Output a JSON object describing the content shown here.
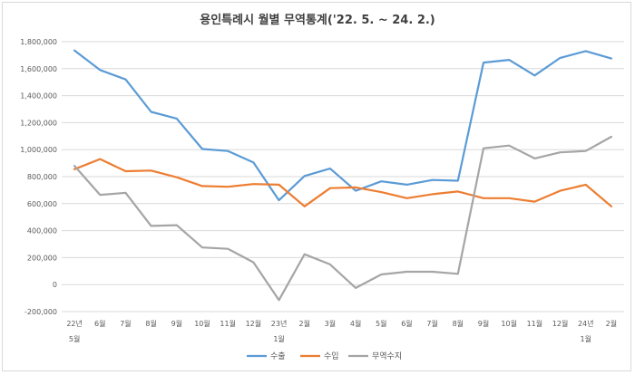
{
  "chart_data": {
    "type": "line",
    "title": "용인특례시 월별 무역통계('22. 5. ~ 24. 2.)",
    "categories": [
      "22년 5월",
      "6월",
      "7월",
      "8월",
      "9월",
      "10월",
      "11월",
      "12월",
      "23년 1월",
      "2월",
      "3월",
      "4월",
      "5월",
      "6월",
      "7월",
      "8월",
      "9월",
      "10월",
      "11월",
      "12월",
      "24년 1월",
      "2월"
    ],
    "x_labels_top": [
      "22년",
      "6월",
      "7월",
      "8월",
      "9월",
      "10월",
      "11월",
      "12월",
      "23년",
      "2월",
      "3월",
      "4월",
      "5월",
      "6월",
      "7월",
      "8월",
      "9월",
      "10월",
      "11월",
      "12월",
      "24년",
      "2월"
    ],
    "x_labels_bottom": [
      "5월",
      "",
      "",
      "",
      "",
      "",
      "",
      "",
      "1월",
      "",
      "",
      "",
      "",
      "",
      "",
      "",
      "",
      "",
      "",
      "",
      "1월",
      ""
    ],
    "ylim": [
      -200000,
      1800000
    ],
    "yticks": [
      "1,800,000",
      "1,600,000",
      "1,400,000",
      "1,200,000",
      "1,000,000",
      "800,000",
      "600,000",
      "400,000",
      "200,000",
      "0",
      "-200,000"
    ],
    "ytick_values": [
      1800000,
      1600000,
      1400000,
      1200000,
      1000000,
      800000,
      600000,
      400000,
      200000,
      0,
      -200000
    ],
    "grid": true,
    "legend_position": "bottom",
    "series": [
      {
        "name": "수출",
        "color": "#5b9bd5",
        "values": [
          1735000,
          1590000,
          1520000,
          1280000,
          1230000,
          1005000,
          990000,
          905000,
          625000,
          805000,
          860000,
          695000,
          765000,
          740000,
          775000,
          770000,
          1645000,
          1665000,
          1550000,
          1680000,
          1730000,
          1675000
        ]
      },
      {
        "name": "수입",
        "color": "#ed7d31",
        "values": [
          855000,
          930000,
          840000,
          845000,
          795000,
          730000,
          725000,
          745000,
          740000,
          580000,
          715000,
          720000,
          685000,
          640000,
          670000,
          690000,
          640000,
          640000,
          615000,
          695000,
          740000,
          580000
        ]
      },
      {
        "name": "무역수지",
        "color": "#a5a5a5",
        "values": [
          880000,
          665000,
          680000,
          435000,
          440000,
          275000,
          265000,
          165000,
          -115000,
          225000,
          150000,
          -25000,
          75000,
          95000,
          95000,
          80000,
          1010000,
          1030000,
          935000,
          980000,
          990000,
          1095000
        ]
      }
    ]
  }
}
